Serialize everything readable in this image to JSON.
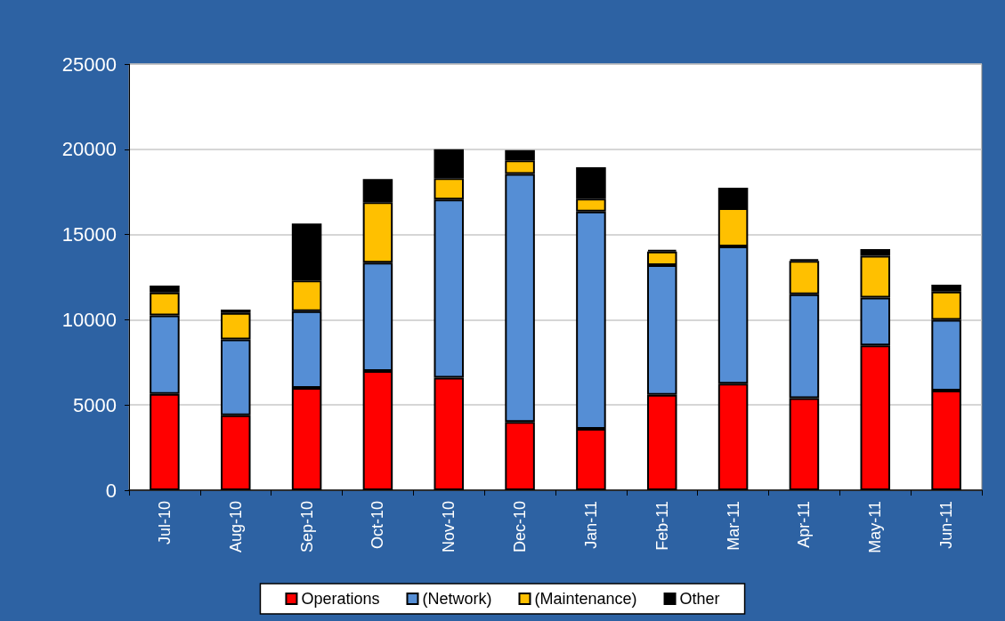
{
  "chart_data": {
    "type": "bar",
    "stacked": true,
    "categories": [
      "Jul-10",
      "Aug-10",
      "Sep-10",
      "Oct-10",
      "Nov-10",
      "Dec-10",
      "Jan-11",
      "Feb-11",
      "Mar-11",
      "Apr-11",
      "May-11",
      "Jun-11"
    ],
    "series": [
      {
        "name": "Operations",
        "color": "#ff0000",
        "values": [
          5650,
          4400,
          6000,
          7000,
          6600,
          4000,
          3600,
          5600,
          6250,
          5400,
          8500,
          5850
        ]
      },
      {
        "name": "(Network)",
        "color": "#558ed5",
        "values": [
          4600,
          4450,
          4500,
          6350,
          10450,
          14550,
          12750,
          7600,
          8050,
          6100,
          2800,
          4150
        ]
      },
      {
        "name": "(Maintenance)",
        "color": "#ffc000",
        "values": [
          1350,
          1550,
          1800,
          3550,
          1250,
          800,
          750,
          800,
          2250,
          1950,
          2450,
          1650
        ]
      },
      {
        "name": "Other",
        "color": "#000000",
        "values": [
          400,
          200,
          3350,
          1350,
          1700,
          600,
          1850,
          100,
          1200,
          100,
          400,
          400
        ]
      }
    ],
    "ylim": [
      0,
      25000
    ],
    "yticks": [
      0,
      5000,
      10000,
      15000,
      20000,
      25000
    ],
    "grid": "y",
    "legend": "bottom"
  }
}
